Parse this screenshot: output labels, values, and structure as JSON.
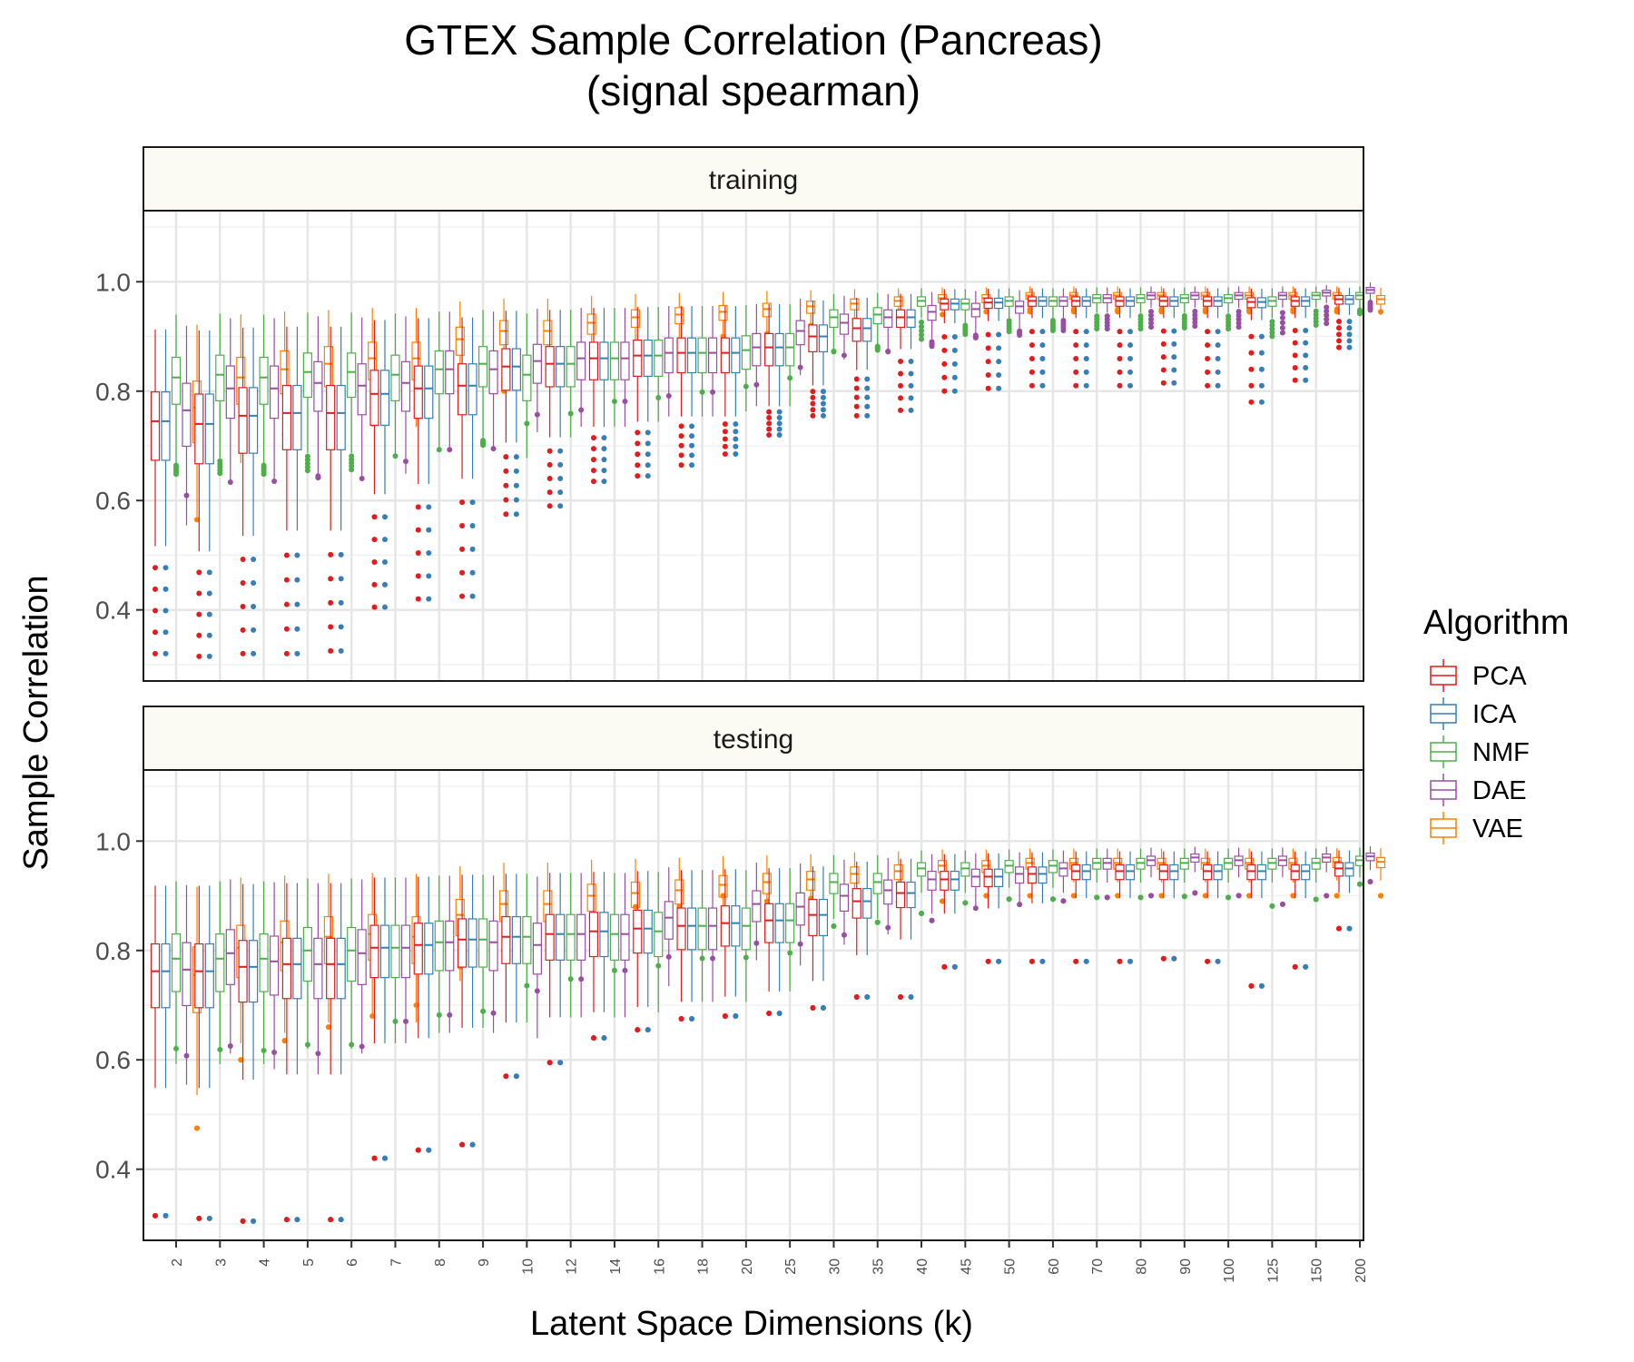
{
  "title_line1": "GTEX Sample Correlation (Pancreas)",
  "title_line2": "(signal spearman)",
  "xlabel": "Latent Space Dimensions (k)",
  "ylabel": "Sample Correlation",
  "legend_title": "Algorithm",
  "chart_data": {
    "type": "box",
    "x_categories": [
      "2",
      "3",
      "4",
      "5",
      "6",
      "7",
      "8",
      "9",
      "10",
      "12",
      "14",
      "16",
      "18",
      "20",
      "25",
      "30",
      "35",
      "40",
      "45",
      "50",
      "60",
      "70",
      "80",
      "90",
      "100",
      "125",
      "150",
      "200"
    ],
    "y_ticks": [
      "0.4",
      "0.6",
      "0.8",
      "1.0"
    ],
    "ylim": [
      0.27,
      1.13
    ],
    "grid": true,
    "legend_position": "right",
    "algorithms": [
      {
        "name": "PCA",
        "color": "#e41a1c"
      },
      {
        "name": "ICA",
        "color": "#377eb8"
      },
      {
        "name": "NMF",
        "color": "#4daf4a"
      },
      {
        "name": "DAE",
        "color": "#984ea3"
      },
      {
        "name": "VAE",
        "color": "#ff7f00"
      }
    ],
    "panels": [
      {
        "label": "training",
        "medians": {
          "PCA": [
            0.745,
            0.74,
            0.755,
            0.76,
            0.76,
            0.795,
            0.805,
            0.81,
            0.845,
            0.85,
            0.86,
            0.865,
            0.87,
            0.87,
            0.88,
            0.9,
            0.915,
            0.935,
            0.96,
            0.962,
            0.965,
            0.965,
            0.965,
            0.965,
            0.965,
            0.963,
            0.965,
            0.968
          ],
          "ICA": [
            0.745,
            0.74,
            0.755,
            0.76,
            0.76,
            0.795,
            0.805,
            0.81,
            0.845,
            0.85,
            0.86,
            0.865,
            0.87,
            0.87,
            0.88,
            0.9,
            0.915,
            0.935,
            0.96,
            0.962,
            0.965,
            0.965,
            0.965,
            0.965,
            0.965,
            0.963,
            0.965,
            0.968
          ],
          "NMF": [
            0.825,
            0.83,
            0.825,
            0.835,
            0.835,
            0.83,
            0.84,
            0.85,
            0.83,
            0.85,
            0.86,
            0.865,
            0.87,
            0.875,
            0.88,
            0.935,
            0.94,
            0.965,
            0.96,
            0.965,
            0.965,
            0.97,
            0.97,
            0.97,
            0.97,
            0.965,
            0.975,
            0.975
          ],
          "DAE": [
            0.765,
            0.805,
            0.805,
            0.815,
            0.81,
            0.815,
            0.84,
            0.84,
            0.855,
            0.86,
            0.86,
            0.87,
            0.87,
            0.88,
            0.91,
            0.925,
            0.935,
            0.945,
            0.95,
            0.955,
            0.965,
            0.97,
            0.975,
            0.975,
            0.975,
            0.975,
            0.98,
            0.985
          ],
          "VAE": [
            0.77,
            0.825,
            0.84,
            0.85,
            0.86,
            0.86,
            0.895,
            0.91,
            0.91,
            0.925,
            0.935,
            0.94,
            0.945,
            0.95,
            0.955,
            0.96,
            0.965,
            0.97,
            0.97,
            0.975,
            0.975,
            0.975,
            0.975,
            0.975,
            0.975,
            0.975,
            0.975,
            0.968
          ]
        },
        "mins": {
          "PCA": [
            0.32,
            0.315,
            0.32,
            0.32,
            0.325,
            0.405,
            0.42,
            0.425,
            0.575,
            0.59,
            0.635,
            0.645,
            0.665,
            0.685,
            0.72,
            0.755,
            0.755,
            0.765,
            0.8,
            0.805,
            0.81,
            0.81,
            0.81,
            0.815,
            0.81,
            0.78,
            0.82,
            0.88
          ],
          "VAE": [
            0.565,
            0.69,
            0.72,
            0.74,
            0.77,
            0.77,
            0.81,
            0.8,
            0.84,
            0.87,
            0.89,
            0.89,
            0.9,
            0.905,
            0.92,
            0.93,
            0.935,
            0.94,
            0.945,
            0.945,
            0.945,
            0.945,
            0.945,
            0.945,
            0.945,
            0.945,
            0.945,
            0.945
          ]
        }
      },
      {
        "label": "testing",
        "medians": {
          "PCA": [
            0.762,
            0.762,
            0.77,
            0.775,
            0.775,
            0.805,
            0.81,
            0.82,
            0.825,
            0.83,
            0.835,
            0.84,
            0.845,
            0.85,
            0.855,
            0.865,
            0.89,
            0.905,
            0.93,
            0.935,
            0.94,
            0.945,
            0.945,
            0.945,
            0.945,
            0.945,
            0.945,
            0.95
          ],
          "ICA": [
            0.762,
            0.762,
            0.77,
            0.775,
            0.775,
            0.805,
            0.81,
            0.82,
            0.825,
            0.83,
            0.835,
            0.84,
            0.845,
            0.85,
            0.855,
            0.865,
            0.89,
            0.905,
            0.93,
            0.935,
            0.94,
            0.945,
            0.945,
            0.945,
            0.945,
            0.945,
            0.945,
            0.95
          ],
          "NMF": [
            0.785,
            0.785,
            0.785,
            0.8,
            0.8,
            0.805,
            0.815,
            0.82,
            0.825,
            0.83,
            0.83,
            0.835,
            0.845,
            0.845,
            0.855,
            0.925,
            0.925,
            0.95,
            0.95,
            0.955,
            0.955,
            0.96,
            0.96,
            0.96,
            0.96,
            0.96,
            0.96,
            0.965
          ],
          "DAE": [
            0.765,
            0.795,
            0.78,
            0.775,
            0.795,
            0.805,
            0.815,
            0.815,
            0.81,
            0.83,
            0.83,
            0.86,
            0.845,
            0.885,
            0.88,
            0.9,
            0.91,
            0.93,
            0.935,
            0.94,
            0.95,
            0.96,
            0.965,
            0.97,
            0.965,
            0.965,
            0.97,
            0.972
          ],
          "VAE": [
            0.755,
            0.805,
            0.815,
            0.825,
            0.83,
            0.825,
            0.865,
            0.885,
            0.885,
            0.9,
            0.905,
            0.91,
            0.92,
            0.925,
            0.93,
            0.94,
            0.945,
            0.955,
            0.955,
            0.96,
            0.96,
            0.96,
            0.96,
            0.96,
            0.96,
            0.96,
            0.962,
            0.962
          ]
        },
        "mins": {
          "PCA": [
            0.315,
            0.31,
            0.305,
            0.308,
            0.308,
            0.42,
            0.435,
            0.445,
            0.57,
            0.595,
            0.64,
            0.655,
            0.675,
            0.68,
            0.685,
            0.695,
            0.715,
            0.715,
            0.77,
            0.78,
            0.78,
            0.78,
            0.78,
            0.785,
            0.78,
            0.735,
            0.77,
            0.84
          ],
          "VAE": [
            0.475,
            0.6,
            0.635,
            0.66,
            0.68,
            0.7,
            0.77,
            0.8,
            0.83,
            0.86,
            0.88,
            0.88,
            0.9,
            0.89,
            0.895,
            0.9,
            0.89,
            0.89,
            0.9,
            0.9,
            0.9,
            0.9,
            0.9,
            0.9,
            0.9,
            0.9,
            0.9,
            0.9
          ]
        }
      }
    ]
  }
}
